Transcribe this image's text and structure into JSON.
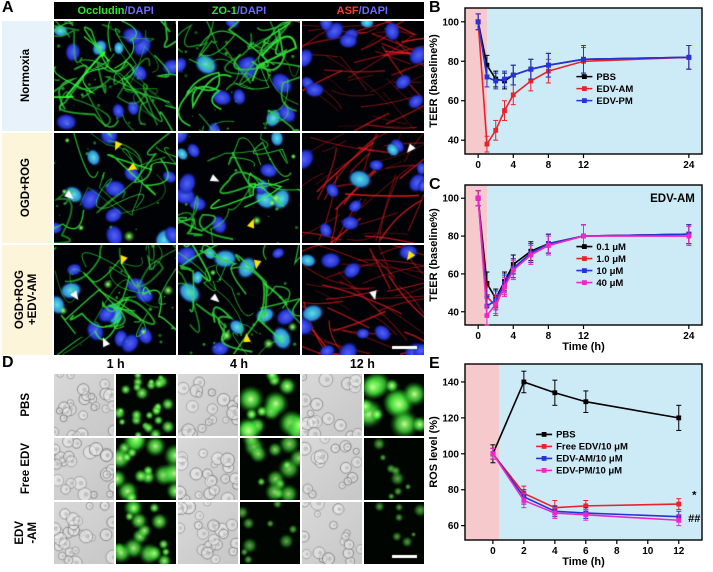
{
  "panels": {
    "A": "A",
    "B": "B",
    "C": "C",
    "D": "D",
    "E": "E"
  },
  "panelA": {
    "columns": [
      {
        "marker": "Occludin",
        "marker_color": "#2ee52e",
        "dapi": "/DAPI",
        "dapi_color": "#6b6bff"
      },
      {
        "marker": "ZO-1",
        "marker_color": "#2ee52e",
        "dapi": "/DAPI",
        "dapi_color": "#6b6bff"
      },
      {
        "marker": "ASF",
        "marker_color": "#ff3b30",
        "dapi": "/DAPI",
        "dapi_color": "#6b6bff"
      }
    ],
    "rows": [
      {
        "label": "Normoxia",
        "bg": "#e7f2fa"
      },
      {
        "label": "OGD+ROG",
        "bg": "#fdf5da"
      },
      {
        "label": "OGD+ROG\n+EDV-AM",
        "bg": "#fdf5da"
      }
    ]
  },
  "panelD": {
    "timepoints": [
      "1 h",
      "4 h",
      "12 h"
    ],
    "rows": [
      {
        "label": "PBS"
      },
      {
        "label": "Free EDV"
      },
      {
        "label": "EDV\n-AM"
      }
    ]
  },
  "micrographs": {
    "A": {
      "rows": [
        [
          {
            "type": "tj",
            "nuclei": 11,
            "mesh": 1.0
          },
          {
            "type": "tj",
            "nuclei": 11,
            "mesh": 0.95
          },
          {
            "type": "asf",
            "nuclei": 12,
            "fibers": 1.0
          }
        ],
        [
          {
            "type": "tj",
            "nuclei": 12,
            "mesh": 0.55,
            "agg": true,
            "arrows": [
              {
                "x": 0.5,
                "y": 0.16,
                "c": "#ffe400",
                "r": 115
              },
              {
                "x": 0.6,
                "y": 0.34,
                "c": "#ffe400",
                "r": 150
              },
              {
                "x": 0.16,
                "y": 0.6,
                "c": "#ffffff",
                "r": 40
              }
            ]
          },
          {
            "type": "tj",
            "nuclei": 12,
            "mesh": 0.5,
            "agg": true,
            "arrows": [
              {
                "x": 0.34,
                "y": 0.44,
                "c": "#ffffff",
                "r": 25
              },
              {
                "x": 0.62,
                "y": 0.78,
                "c": "#ffe400",
                "r": -70
              }
            ]
          },
          {
            "type": "asf",
            "nuclei": 12,
            "fibers": 0.85,
            "arrows": [
              {
                "x": 0.86,
                "y": 0.18,
                "c": "#ffffff",
                "r": 130
              }
            ]
          }
        ],
        [
          {
            "type": "tj",
            "nuclei": 11,
            "mesh": 0.75,
            "agg": true,
            "arrows": [
              {
                "x": 0.55,
                "y": 0.18,
                "c": "#ffe400",
                "r": 110
              },
              {
                "x": 0.2,
                "y": 0.5,
                "c": "#ffffff",
                "r": 55
              },
              {
                "x": 0.4,
                "y": 0.84,
                "c": "#ffffff",
                "r": -115
              }
            ]
          },
          {
            "type": "tj",
            "nuclei": 12,
            "mesh": 0.7,
            "agg": true,
            "arrows": [
              {
                "x": 0.64,
                "y": 0.22,
                "c": "#ffe400",
                "r": 100
              },
              {
                "x": 0.34,
                "y": 0.52,
                "c": "#ffffff",
                "r": 40
              },
              {
                "x": 0.56,
                "y": 0.8,
                "c": "#ffe400",
                "r": -95
              }
            ]
          },
          {
            "type": "asf",
            "nuclei": 12,
            "fibers": 0.95,
            "scalebar": true,
            "arrows": [
              {
                "x": 0.86,
                "y": 0.14,
                "c": "#ffe400",
                "r": 125
              },
              {
                "x": 0.6,
                "y": 0.5,
                "c": "#ffffff",
                "r": 75
              }
            ]
          }
        ]
      ]
    },
    "D": {
      "rows": [
        [
          {
            "type": "bf",
            "density": 0.9
          },
          {
            "type": "ros",
            "count": 26,
            "size": 2.5,
            "bright": 0.9
          },
          {
            "type": "bf",
            "density": 0.7
          },
          {
            "type": "ros",
            "count": 14,
            "size": 5,
            "bright": 1.0
          },
          {
            "type": "bf",
            "density": 0.6
          },
          {
            "type": "ros",
            "count": 12,
            "size": 5.5,
            "bright": 1.0
          }
        ],
        [
          {
            "type": "bf",
            "density": 0.8
          },
          {
            "type": "ros",
            "count": 18,
            "size": 4.5,
            "bright": 0.95
          },
          {
            "type": "bf",
            "density": 0.7
          },
          {
            "type": "ros",
            "count": 14,
            "size": 4,
            "bright": 0.8
          },
          {
            "type": "bf",
            "density": 0.6
          },
          {
            "type": "ros",
            "count": 8,
            "size": 3,
            "bright": 0.6
          }
        ],
        [
          {
            "type": "bf",
            "density": 0.8
          },
          {
            "type": "ros",
            "count": 16,
            "size": 4,
            "bright": 0.9
          },
          {
            "type": "bf",
            "density": 0.7
          },
          {
            "type": "ros",
            "count": 9,
            "size": 3,
            "bright": 0.6
          },
          {
            "type": "bf",
            "density": 0.6
          },
          {
            "type": "ros",
            "count": 7,
            "size": 2.5,
            "bright": 0.55,
            "scalebar": true
          }
        ]
      ]
    }
  },
  "chart_data": [
    {
      "panel": "B",
      "type": "line",
      "ylabel": "TEER (baseline%)",
      "xlabel": "",
      "xlim": [
        -1.5,
        25.5
      ],
      "ylim": [
        33,
        107
      ],
      "xticks": [
        0,
        4,
        8,
        12,
        24
      ],
      "yticks": [
        40,
        60,
        80,
        100
      ],
      "plot_bg": "#cdeaf7",
      "band": {
        "x0": -1.5,
        "x1": 1,
        "color": "#f6c9cd"
      },
      "x": [
        0,
        1,
        2,
        3,
        4,
        6,
        8,
        12,
        24
      ],
      "series": [
        {
          "name": "PBS",
          "color": "#000000",
          "values": [
            100,
            78,
            71,
            70,
            73,
            76,
            78,
            81,
            82
          ],
          "err": [
            4,
            5,
            4,
            4,
            5,
            5,
            6,
            7,
            6
          ]
        },
        {
          "name": "EDV-AM",
          "color": "#e8232a",
          "values": [
            100,
            38,
            45,
            55,
            63,
            70,
            75,
            80,
            82
          ],
          "err": [
            4,
            4,
            5,
            5,
            5,
            5,
            6,
            7,
            6
          ]
        },
        {
          "name": "EDV-PM",
          "color": "#2633d8",
          "values": [
            100,
            72,
            70,
            71,
            73,
            76,
            78,
            81,
            82
          ],
          "err": [
            4,
            5,
            4,
            4,
            5,
            5,
            6,
            7,
            6
          ]
        }
      ],
      "legend": {
        "fx": 0.47,
        "fy": 0.47
      }
    },
    {
      "panel": "C",
      "type": "line",
      "ylabel": "TEER (baseline%)",
      "xlabel": "Time (h)",
      "xlim": [
        -1.5,
        25.5
      ],
      "ylim": [
        33,
        107
      ],
      "xticks": [
        0,
        4,
        8,
        12,
        24
      ],
      "yticks": [
        40,
        60,
        80,
        100
      ],
      "plot_bg": "#cdeaf7",
      "band": {
        "x0": -1.5,
        "x1": 1,
        "color": "#f6c9cd"
      },
      "inner_title": {
        "text": "EDV-AM",
        "fx": 0.97,
        "fy": 0.12
      },
      "x": [
        0,
        1,
        2,
        3,
        4,
        6,
        8,
        12,
        24
      ],
      "series": [
        {
          "name": "0.1 μM",
          "color": "#000000",
          "values": [
            100,
            55,
            47,
            56,
            65,
            72,
            76,
            80,
            81
          ],
          "err": [
            4,
            6,
            5,
            5,
            5,
            5,
            5,
            6,
            5
          ]
        },
        {
          "name": "1.0 μM",
          "color": "#e8232a",
          "values": [
            100,
            48,
            43,
            54,
            63,
            71,
            76,
            80,
            81
          ],
          "err": [
            4,
            5,
            5,
            5,
            5,
            5,
            5,
            6,
            5
          ]
        },
        {
          "name": "10 μM",
          "color": "#2633d8",
          "values": [
            100,
            43,
            46,
            55,
            63,
            71,
            76,
            80,
            81
          ],
          "err": [
            4,
            5,
            5,
            5,
            5,
            5,
            5,
            6,
            5
          ]
        },
        {
          "name": "40 μM",
          "color": "#ee28c8",
          "values": [
            100,
            38,
            44,
            53,
            62,
            70,
            75,
            80,
            80
          ],
          "err": [
            4,
            5,
            5,
            5,
            5,
            5,
            5,
            6,
            5
          ]
        }
      ],
      "legend": {
        "fx": 0.47,
        "fy": 0.44
      }
    },
    {
      "panel": "E",
      "type": "line",
      "ylabel": "ROS level (%)",
      "xlabel": "Time (h)",
      "xlim": [
        -1.8,
        13.5
      ],
      "ylim": [
        52,
        150
      ],
      "xticks": [
        0,
        2,
        4,
        6,
        8,
        10,
        12
      ],
      "yticks": [
        60,
        80,
        100,
        120,
        140
      ],
      "plot_bg": "#cdeaf7",
      "band": {
        "x0": -1.8,
        "x1": 0.4,
        "color": "#f6c9cd"
      },
      "x": [
        0,
        2,
        4,
        6,
        12
      ],
      "series": [
        {
          "name": "PBS",
          "color": "#000000",
          "values": [
            100,
            140,
            134,
            129,
            120
          ],
          "err": [
            5,
            6,
            7,
            6,
            7
          ]
        },
        {
          "name": "Free EDV/10 μM",
          "color": "#e8232a",
          "values": [
            100,
            78,
            70,
            71,
            72
          ],
          "err": [
            3,
            4,
            4,
            3,
            3
          ]
        },
        {
          "name": "EDV-AM/10 μM",
          "color": "#2633d8",
          "values": [
            100,
            76,
            68,
            67,
            65
          ],
          "err": [
            3,
            4,
            3,
            3,
            3
          ]
        },
        {
          "name": "EDV-PM/10 μM",
          "color": "#ee28c8",
          "values": [
            100,
            74,
            67,
            66,
            63
          ],
          "err": [
            3,
            4,
            3,
            3,
            3
          ]
        }
      ],
      "legend": {
        "fx": 0.3,
        "fy": 0.4
      },
      "annotations": [
        {
          "text": "*",
          "x": 13.0,
          "y": 75,
          "color": "#222222"
        },
        {
          "text": "##",
          "x": 13.0,
          "y": 62,
          "color": "#222222"
        }
      ]
    }
  ]
}
